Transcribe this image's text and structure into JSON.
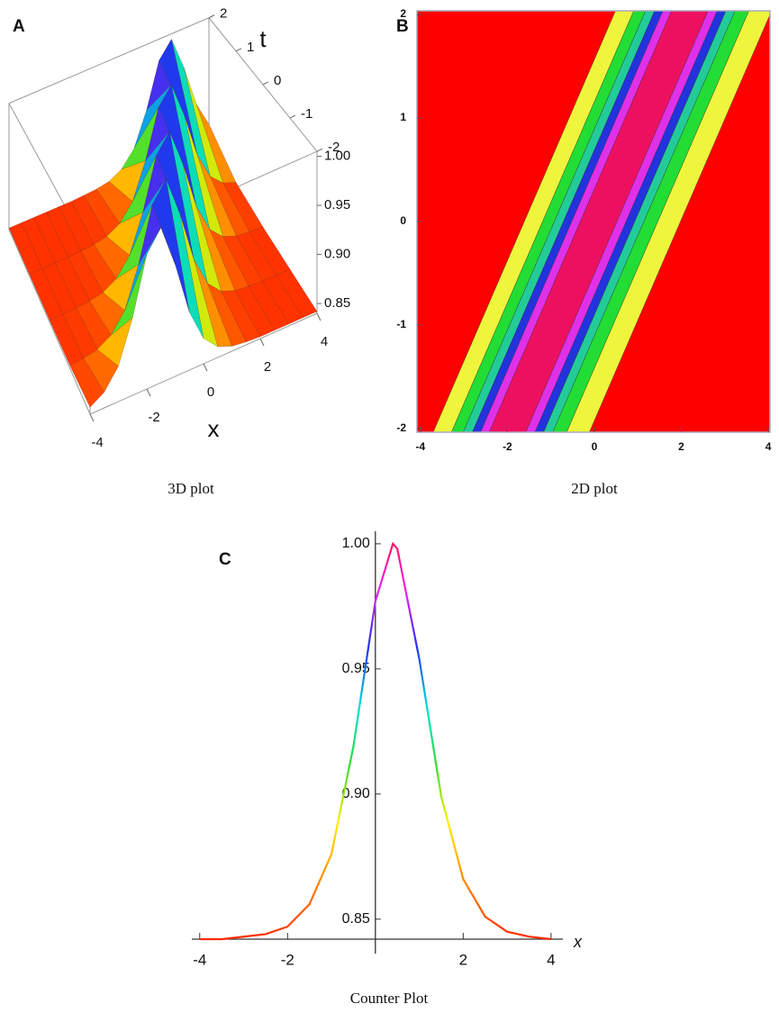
{
  "chart_data": [
    {
      "type": "surface3d",
      "panel_label": "A",
      "caption": "3D plot",
      "xlabel": "x",
      "ylabel": "t",
      "x": [
        -4,
        -3.5,
        -3,
        -2.5,
        -2,
        -1.5,
        -1,
        -0.5,
        0,
        0.5,
        1,
        1.5,
        2,
        2.5,
        3,
        3.5,
        4
      ],
      "t": [
        2,
        1,
        0,
        -1,
        -2
      ],
      "z": [
        [
          0.842,
          0.842,
          0.842,
          0.842,
          0.842,
          0.842,
          0.843,
          0.844,
          0.847,
          0.856,
          0.876,
          0.919,
          0.977,
          0.998,
          0.954,
          0.899,
          0.866
        ],
        [
          0.842,
          0.842,
          0.842,
          0.842,
          0.843,
          0.844,
          0.847,
          0.856,
          0.876,
          0.919,
          0.977,
          0.998,
          0.954,
          0.899,
          0.866,
          0.851,
          0.845
        ],
        [
          0.842,
          0.842,
          0.843,
          0.844,
          0.847,
          0.856,
          0.876,
          0.919,
          0.977,
          0.998,
          0.954,
          0.899,
          0.866,
          0.851,
          0.845,
          0.843,
          0.842
        ],
        [
          0.843,
          0.844,
          0.847,
          0.856,
          0.876,
          0.919,
          0.977,
          0.998,
          0.954,
          0.899,
          0.866,
          0.851,
          0.845,
          0.843,
          0.842,
          0.842,
          0.842
        ],
        [
          0.847,
          0.856,
          0.876,
          0.919,
          0.977,
          0.998,
          0.954,
          0.899,
          0.866,
          0.851,
          0.845,
          0.843,
          0.842,
          0.842,
          0.842,
          0.842,
          0.842
        ]
      ],
      "xlim": [
        -4,
        4
      ],
      "ylim": [
        -2,
        2
      ],
      "zlim": [
        0.84,
        1.005
      ],
      "xticks": [
        -4,
        -2,
        0,
        2,
        4
      ],
      "yticks": [
        2,
        1,
        0,
        -1,
        -2
      ],
      "zticks": [
        {
          "value": 0.85,
          "label": "0.85"
        },
        {
          "value": 0.9,
          "label": "0.90"
        },
        {
          "value": 0.95,
          "label": "0.95"
        },
        {
          "value": 1,
          "label": "1.00"
        }
      ],
      "colormap": [
        "#ff2a00",
        "#ff8800",
        "#ffee00",
        "#33dd33",
        "#00dddd",
        "#2233ee",
        "#ee22ee",
        "#ff1040"
      ]
    },
    {
      "type": "density",
      "panel_label": "B",
      "caption": "2D plot",
      "xlim": [
        -4.08,
        4.04
      ],
      "ylim": [
        -2.035,
        2.035
      ],
      "xticks": [
        -4,
        -2,
        0,
        2,
        4
      ],
      "yticks": [
        -2,
        -1,
        0,
        1,
        2
      ],
      "background": "#ff0000",
      "band_edges": [
        -1.61,
        -1.19,
        -0.92,
        -0.71,
        -0.52,
        -0.32,
        0.52,
        0.73,
        0.93,
        1.14,
        1.46,
        1.98
      ],
      "band_colors": [
        "#eef53c",
        "#22dd33",
        "#22cc99",
        "#2233dd",
        "#e030e8",
        "#ee1060",
        "#e030e8",
        "#2233dd",
        "#22cc99",
        "#22dd33",
        "#eef53c"
      ],
      "drift": 1.03
    },
    {
      "type": "line",
      "panel_label": "C",
      "caption": "Counter Plot",
      "xlabel": "x",
      "x": [
        -4,
        -3.5,
        -3,
        -2.5,
        -2,
        -1.5,
        -1,
        -0.5,
        0,
        0.4,
        0.5,
        1,
        1.5,
        2,
        2.5,
        3,
        3.5,
        4
      ],
      "values": [
        0.842,
        0.842,
        0.843,
        0.844,
        0.847,
        0.856,
        0.876,
        0.919,
        0.977,
        1.0,
        0.998,
        0.954,
        0.899,
        0.866,
        0.851,
        0.845,
        0.843,
        0.842
      ],
      "xlim": [
        -4.18,
        4.27
      ],
      "ylim": [
        0.842,
        1.005
      ],
      "xticks": [
        -4,
        -2,
        2,
        4
      ],
      "yticks": [
        {
          "value": 0.85,
          "label": "0.85"
        },
        {
          "value": 0.9,
          "label": "0.90"
        },
        {
          "value": 0.95,
          "label": "0.95"
        },
        {
          "value": 1,
          "label": "1.00"
        }
      ],
      "colormap": [
        "#ff2a00",
        "#ff8800",
        "#ffee00",
        "#33dd33",
        "#00dddd",
        "#2233ee",
        "#ee22ee",
        "#ff1040"
      ]
    }
  ]
}
